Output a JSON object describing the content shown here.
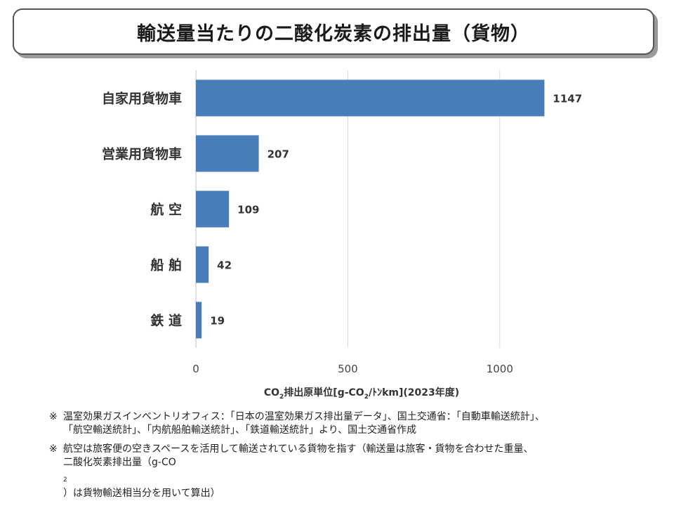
{
  "title": "輸送量当たりの二酸化炭素の排出量（貨物）",
  "chart_data": {
    "type": "bar",
    "orientation": "horizontal",
    "categories": [
      "自家用貨物車",
      "営業用貨物車",
      "航 空",
      "船 舶",
      "鉄 道"
    ],
    "values": [
      1147,
      207,
      109,
      42,
      19
    ],
    "xlim": [
      0,
      1250
    ],
    "xticks": [
      0,
      500,
      1000
    ],
    "grid": true,
    "bar_color": "#4a7ebb",
    "xlabel_parts": {
      "pre": "CO",
      "sub": "2",
      "post": "排出原単位[g-CO",
      "sub2": "2",
      "post2": "/ﾄﾝkm](2023年度)"
    }
  },
  "notes": [
    {
      "mark": "※",
      "lines": [
        "温室効果ガスインベントリオフィス：「日本の温室効果ガス排出量データ」、国土交通省：「自動車輸送統計」、",
        "「航空輸送統計」、「内航船舶輸送統計」、「鉄道輸送統計」より、国土交通省作成"
      ]
    },
    {
      "mark": "※",
      "line1": "航空は旅客便の空きスペースを活用して輸送されている貨物を指す（輸送量は旅客・貨物を合わせた重量、",
      "line2_pre": "二酸化炭素排出量（g-CO",
      "line2_sub": "2",
      "line2_post": "）は貨物輸送相当分を用いて算出）"
    }
  ]
}
